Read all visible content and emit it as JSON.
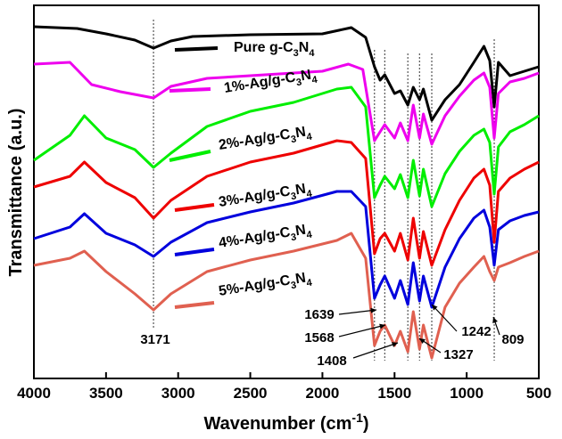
{
  "chart_data": {
    "type": "line",
    "xlabel": "Wavenumber (cm",
    "xlabel_sup": "-1",
    "xlabel_end": ")",
    "ylabel": "Transmittance (a.u.)",
    "xlim": [
      4000,
      500
    ],
    "x_ticks": [
      "4000",
      "3500",
      "3000",
      "2500",
      "2000",
      "1500",
      "1000",
      "500"
    ],
    "x_tick_values": [
      4000,
      3500,
      3000,
      2500,
      2000,
      1500,
      1000,
      500
    ],
    "series": [
      {
        "name_parts": [
          [
            "Pure g-C",
            false
          ],
          [
            "3",
            true
          ],
          [
            "N",
            false
          ],
          [
            "4",
            true
          ]
        ],
        "color": "#000000",
        "points": [
          [
            4000,
            30
          ],
          [
            3700,
            32
          ],
          [
            3500,
            38
          ],
          [
            3300,
            45
          ],
          [
            3171,
            54
          ],
          [
            3050,
            46
          ],
          [
            2900,
            41
          ],
          [
            2500,
            39
          ],
          [
            2000,
            38
          ],
          [
            1800,
            31
          ],
          [
            1700,
            42
          ],
          [
            1639,
            75
          ],
          [
            1600,
            90
          ],
          [
            1568,
            84
          ],
          [
            1500,
            105
          ],
          [
            1460,
            102
          ],
          [
            1408,
            118
          ],
          [
            1370,
            98
          ],
          [
            1327,
            112
          ],
          [
            1300,
            100
          ],
          [
            1242,
            135
          ],
          [
            1150,
            112
          ],
          [
            1050,
            95
          ],
          [
            950,
            70
          ],
          [
            880,
            52
          ],
          [
            840,
            68
          ],
          [
            809,
            120
          ],
          [
            780,
            70
          ],
          [
            700,
            85
          ],
          [
            600,
            80
          ],
          [
            500,
            75
          ]
        ]
      },
      {
        "name_parts": [
          [
            "1%-Ag/g-C",
            false
          ],
          [
            "3",
            true
          ],
          [
            "N",
            false
          ],
          [
            "4",
            true
          ]
        ],
        "color": "#ee00ee",
        "points": [
          [
            4000,
            72
          ],
          [
            3750,
            70
          ],
          [
            3600,
            95
          ],
          [
            3400,
            103
          ],
          [
            3171,
            110
          ],
          [
            3050,
            97
          ],
          [
            2800,
            88
          ],
          [
            2500,
            85
          ],
          [
            2000,
            80
          ],
          [
            1820,
            72
          ],
          [
            1720,
            78
          ],
          [
            1639,
            158
          ],
          [
            1600,
            148
          ],
          [
            1568,
            140
          ],
          [
            1500,
            155
          ],
          [
            1460,
            138
          ],
          [
            1408,
            158
          ],
          [
            1370,
            118
          ],
          [
            1327,
            155
          ],
          [
            1300,
            128
          ],
          [
            1242,
            162
          ],
          [
            1150,
            130
          ],
          [
            1050,
            108
          ],
          [
            950,
            90
          ],
          [
            880,
            82
          ],
          [
            840,
            98
          ],
          [
            809,
            155
          ],
          [
            780,
            105
          ],
          [
            700,
            92
          ],
          [
            600,
            88
          ],
          [
            500,
            82
          ]
        ]
      },
      {
        "name_parts": [
          [
            "2%-Ag/g-C",
            false
          ],
          [
            "3",
            true
          ],
          [
            "N",
            false
          ],
          [
            "4",
            true
          ]
        ],
        "color": "#00ee00",
        "points": [
          [
            4000,
            180
          ],
          [
            3750,
            152
          ],
          [
            3650,
            130
          ],
          [
            3500,
            155
          ],
          [
            3300,
            168
          ],
          [
            3171,
            188
          ],
          [
            3050,
            172
          ],
          [
            2800,
            142
          ],
          [
            2500,
            125
          ],
          [
            2200,
            115
          ],
          [
            1900,
            100
          ],
          [
            1800,
            98
          ],
          [
            1700,
            120
          ],
          [
            1639,
            222
          ],
          [
            1600,
            208
          ],
          [
            1568,
            198
          ],
          [
            1500,
            212
          ],
          [
            1460,
            196
          ],
          [
            1408,
            222
          ],
          [
            1370,
            180
          ],
          [
            1327,
            220
          ],
          [
            1300,
            190
          ],
          [
            1242,
            232
          ],
          [
            1150,
            195
          ],
          [
            1050,
            170
          ],
          [
            950,
            152
          ],
          [
            880,
            145
          ],
          [
            840,
            160
          ],
          [
            809,
            218
          ],
          [
            780,
            165
          ],
          [
            700,
            148
          ],
          [
            600,
            140
          ],
          [
            500,
            130
          ]
        ]
      },
      {
        "name_parts": [
          [
            "3%-Ag/g-C",
            false
          ],
          [
            "3",
            true
          ],
          [
            "N",
            false
          ],
          [
            "4",
            true
          ]
        ],
        "color": "#ee0000",
        "points": [
          [
            4000,
            210
          ],
          [
            3750,
            198
          ],
          [
            3650,
            182
          ],
          [
            3500,
            205
          ],
          [
            3300,
            222
          ],
          [
            3171,
            245
          ],
          [
            3050,
            225
          ],
          [
            2800,
            198
          ],
          [
            2500,
            182
          ],
          [
            2200,
            172
          ],
          [
            1900,
            158
          ],
          [
            1800,
            160
          ],
          [
            1700,
            178
          ],
          [
            1639,
            285
          ],
          [
            1600,
            268
          ],
          [
            1568,
            262
          ],
          [
            1500,
            282
          ],
          [
            1460,
            262
          ],
          [
            1408,
            292
          ],
          [
            1370,
            245
          ],
          [
            1327,
            290
          ],
          [
            1300,
            260
          ],
          [
            1242,
            298
          ],
          [
            1150,
            258
          ],
          [
            1050,
            225
          ],
          [
            950,
            200
          ],
          [
            880,
            190
          ],
          [
            840,
            208
          ],
          [
            809,
            272
          ],
          [
            780,
            215
          ],
          [
            700,
            200
          ],
          [
            600,
            190
          ],
          [
            500,
            182
          ]
        ]
      },
      {
        "name_parts": [
          [
            "4%-Ag/g-C",
            false
          ],
          [
            "3",
            true
          ],
          [
            "N",
            false
          ],
          [
            "4",
            true
          ]
        ],
        "color": "#0000dd",
        "points": [
          [
            4000,
            268
          ],
          [
            3750,
            255
          ],
          [
            3650,
            240
          ],
          [
            3500,
            262
          ],
          [
            3300,
            275
          ],
          [
            3171,
            288
          ],
          [
            3050,
            272
          ],
          [
            2800,
            250
          ],
          [
            2500,
            238
          ],
          [
            2200,
            228
          ],
          [
            1900,
            215
          ],
          [
            1800,
            215
          ],
          [
            1700,
            232
          ],
          [
            1639,
            335
          ],
          [
            1600,
            320
          ],
          [
            1568,
            310
          ],
          [
            1500,
            335
          ],
          [
            1460,
            315
          ],
          [
            1408,
            342
          ],
          [
            1370,
            295
          ],
          [
            1327,
            338
          ],
          [
            1300,
            310
          ],
          [
            1242,
            345
          ],
          [
            1150,
            300
          ],
          [
            1050,
            268
          ],
          [
            950,
            245
          ],
          [
            880,
            236
          ],
          [
            840,
            255
          ],
          [
            809,
            298
          ],
          [
            780,
            258
          ],
          [
            700,
            248
          ],
          [
            600,
            242
          ],
          [
            500,
            238
          ]
        ]
      },
      {
        "name_parts": [
          [
            "5%-Ag/g-C",
            false
          ],
          [
            "3",
            true
          ],
          [
            "N",
            false
          ],
          [
            "4",
            true
          ]
        ],
        "color": "#e06050",
        "points": [
          [
            4000,
            298
          ],
          [
            3750,
            290
          ],
          [
            3650,
            282
          ],
          [
            3500,
            305
          ],
          [
            3300,
            330
          ],
          [
            3171,
            348
          ],
          [
            3050,
            330
          ],
          [
            2800,
            305
          ],
          [
            2500,
            292
          ],
          [
            2200,
            282
          ],
          [
            1900,
            270
          ],
          [
            1800,
            262
          ],
          [
            1700,
            290
          ],
          [
            1639,
            388
          ],
          [
            1600,
            372
          ],
          [
            1568,
            365
          ],
          [
            1500,
            388
          ],
          [
            1460,
            372
          ],
          [
            1408,
            395
          ],
          [
            1370,
            350
          ],
          [
            1327,
            392
          ],
          [
            1300,
            365
          ],
          [
            1242,
            402
          ],
          [
            1150,
            345
          ],
          [
            1050,
            318
          ],
          [
            950,
            300
          ],
          [
            880,
            288
          ],
          [
            840,
            305
          ],
          [
            809,
            315
          ],
          [
            780,
            300
          ],
          [
            700,
            295
          ],
          [
            600,
            288
          ],
          [
            500,
            282
          ]
        ]
      }
    ],
    "peaks": [
      {
        "value": 3171,
        "label": "3171"
      },
      {
        "value": 1639,
        "label": "1639"
      },
      {
        "value": 1568,
        "label": "1568"
      },
      {
        "value": 1408,
        "label": "1408"
      },
      {
        "value": 1327,
        "label": "1327"
      },
      {
        "value": 1242,
        "label": "1242"
      },
      {
        "value": 809,
        "label": "809"
      }
    ],
    "grid": false
  }
}
